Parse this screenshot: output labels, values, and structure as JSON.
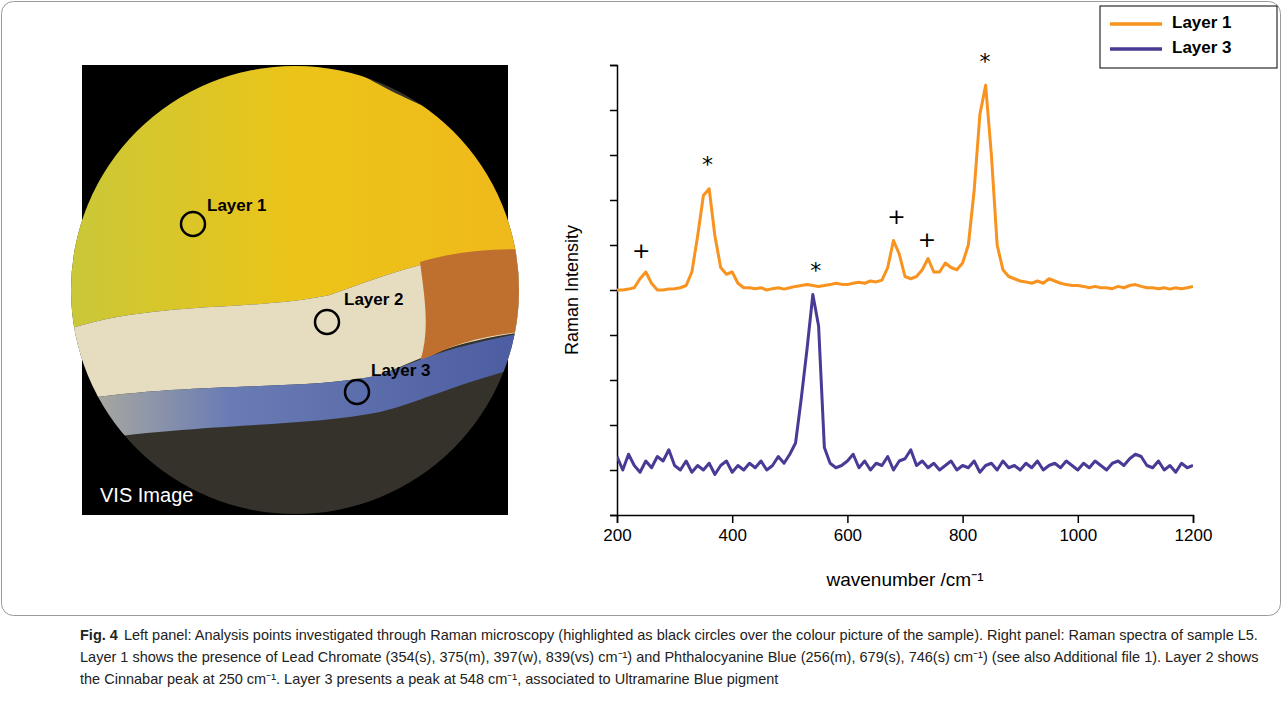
{
  "chart_data": {
    "type": "line",
    "x_label": "wavenumber /cm⁻¹",
    "y_label": "Raman Intensity",
    "x": [
      200,
      210,
      220,
      230,
      240,
      250,
      260,
      270,
      280,
      290,
      300,
      310,
      320,
      330,
      340,
      350,
      360,
      370,
      380,
      390,
      400,
      410,
      420,
      430,
      440,
      450,
      460,
      470,
      480,
      490,
      500,
      510,
      520,
      530,
      540,
      550,
      560,
      570,
      580,
      590,
      600,
      610,
      620,
      630,
      640,
      650,
      660,
      670,
      680,
      690,
      700,
      710,
      720,
      730,
      740,
      750,
      760,
      770,
      780,
      790,
      800,
      810,
      820,
      830,
      840,
      850,
      860,
      870,
      880,
      890,
      900,
      910,
      920,
      930,
      940,
      950,
      960,
      970,
      980,
      990,
      1000,
      1010,
      1020,
      1030,
      1040,
      1050,
      1060,
      1070,
      1080,
      1090,
      1100,
      1110,
      1120,
      1130,
      1140,
      1150,
      1160,
      1170,
      1180,
      1190,
      1200
    ],
    "xlim": [
      200,
      1200
    ],
    "xticks": [
      200,
      400,
      600,
      800,
      1000,
      1200
    ],
    "ylim": [
      0,
      10
    ],
    "yticks": [
      0,
      1,
      2,
      3,
      4,
      5,
      6,
      7,
      8,
      9,
      10
    ],
    "tick_labels": "x",
    "legend": "top-right",
    "series": [
      {
        "name": "Layer 1",
        "color": "#f7931e",
        "values": [
          5.0,
          5.0,
          5.02,
          5.05,
          5.25,
          5.4,
          5.15,
          5.0,
          5.0,
          5.02,
          5.03,
          5.05,
          5.1,
          5.4,
          6.2,
          7.1,
          7.25,
          6.2,
          5.5,
          5.35,
          5.4,
          5.15,
          5.05,
          5.05,
          5.03,
          5.05,
          5.0,
          5.03,
          5.05,
          5.02,
          5.05,
          5.08,
          5.1,
          5.12,
          5.1,
          5.08,
          5.1,
          5.12,
          5.15,
          5.13,
          5.12,
          5.15,
          5.17,
          5.15,
          5.2,
          5.18,
          5.22,
          5.5,
          6.1,
          5.8,
          5.3,
          5.25,
          5.3,
          5.45,
          5.7,
          5.4,
          5.4,
          5.6,
          5.5,
          5.45,
          5.6,
          6.0,
          7.2,
          8.9,
          9.55,
          8.0,
          6.0,
          5.45,
          5.3,
          5.25,
          5.2,
          5.18,
          5.15,
          5.2,
          5.15,
          5.25,
          5.2,
          5.15,
          5.12,
          5.1,
          5.1,
          5.08,
          5.05,
          5.08,
          5.05,
          5.05,
          5.03,
          5.08,
          5.05,
          5.1,
          5.12,
          5.08,
          5.05,
          5.05,
          5.03,
          5.05,
          5.02,
          5.05,
          5.03,
          5.05,
          5.08
        ]
      },
      {
        "name": "Layer 3",
        "color": "#4a3a96",
        "values": [
          1.3,
          1.0,
          1.35,
          1.1,
          0.95,
          1.2,
          1.05,
          1.3,
          1.2,
          1.45,
          1.1,
          1.0,
          1.2,
          0.95,
          1.1,
          1.0,
          1.15,
          0.9,
          1.1,
          1.2,
          0.95,
          1.1,
          1.0,
          1.15,
          1.05,
          1.2,
          1.0,
          1.1,
          1.3,
          1.15,
          1.35,
          1.6,
          2.6,
          3.7,
          4.9,
          4.2,
          1.5,
          1.15,
          1.05,
          1.1,
          1.2,
          1.35,
          1.05,
          1.2,
          1.0,
          1.15,
          1.1,
          1.3,
          1.0,
          1.2,
          1.25,
          1.45,
          1.1,
          1.2,
          1.05,
          1.15,
          1.0,
          1.1,
          1.2,
          1.0,
          1.1,
          1.05,
          1.2,
          0.95,
          1.1,
          1.15,
          1.0,
          1.2,
          1.05,
          1.1,
          1.0,
          1.15,
          1.05,
          1.2,
          1.0,
          1.1,
          1.15,
          1.05,
          1.2,
          1.1,
          1.0,
          1.15,
          1.05,
          1.2,
          1.1,
          1.0,
          1.15,
          1.2,
          1.1,
          1.25,
          1.35,
          1.3,
          1.1,
          1.05,
          1.2,
          1.0,
          1.1,
          0.95,
          1.15,
          1.05,
          1.1
        ]
      }
    ],
    "annotations": [
      {
        "text": "+",
        "x": 242,
        "y": 5.85
      },
      {
        "text": "*",
        "x": 357,
        "y": 7.75
      },
      {
        "text": "+",
        "x": 685,
        "y": 6.6
      },
      {
        "text": "+",
        "x": 738,
        "y": 6.1
      },
      {
        "text": "*",
        "x": 839,
        "y": 10.05
      },
      {
        "text": "*",
        "x": 545,
        "y": 5.4
      }
    ]
  },
  "image": {
    "labels": [
      "Layer 1",
      "Layer 2",
      "Layer 3"
    ],
    "caption": "VIS Image"
  },
  "figure_caption": {
    "label": "Fig. 4",
    "text": "Left panel: Analysis points investigated through Raman microscopy (highlighted as black circles over the colour picture of the sample). Right panel: Raman spectra of sample L5. Layer 1 shows the presence of Lead Chromate (354(s), 375(m), 397(w), 839(vs) cm⁻¹) and Phthalocyanine Blue (256(m), 679(s), 746(s) cm⁻¹) (see also Additional file 1). Layer 2 shows the Cinnabar peak at 250 cm⁻¹. Layer 3 presents a peak at 548 cm⁻¹, associated to Ultramarine Blue pigment"
  }
}
